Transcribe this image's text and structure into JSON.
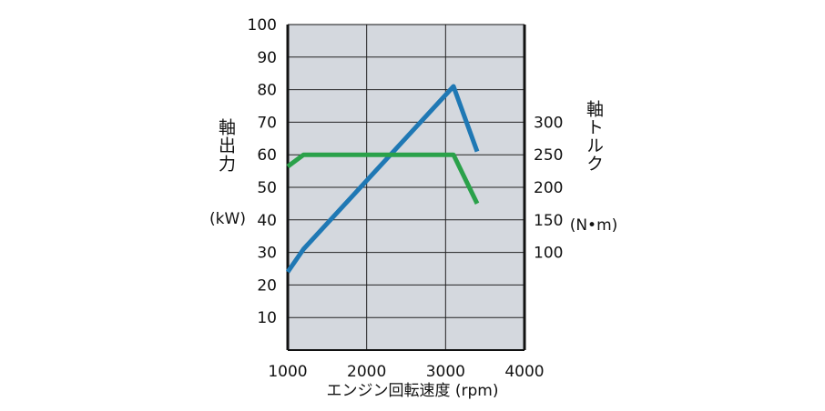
{
  "chart_data": {
    "type": "line",
    "x_axis": {
      "label": "エンジン回転速度 (rpm)",
      "min": 1000,
      "max": 4000,
      "tick_values": [
        1000,
        2000,
        3000,
        4000
      ],
      "tick_labels": [
        "1000",
        "2000",
        "3000",
        "4000"
      ]
    },
    "y_left": {
      "label_vertical": "軸出力",
      "unit": "(kW)",
      "min": 0,
      "max": 100,
      "tick_values": [
        10,
        20,
        30,
        40,
        50,
        60,
        70,
        80,
        90,
        100
      ],
      "tick_labels": [
        "10",
        "20",
        "30",
        "40",
        "50",
        "60",
        "70",
        "80",
        "90",
        "100"
      ]
    },
    "y_right": {
      "label_vertical": "軸トルク",
      "unit": "(N•m)",
      "tick_values": [
        100,
        150,
        200,
        250,
        300
      ],
      "tick_labels": [
        "100",
        "150",
        "200",
        "250",
        "300"
      ],
      "value_at_left_60": 250,
      "value_at_left_70": 300
    },
    "grid": true,
    "series": [
      {
        "axis": "left",
        "color": "#1f78b4",
        "points": [
          [
            1000,
            24
          ],
          [
            1200,
            31
          ],
          [
            3100,
            81
          ],
          [
            3400,
            61
          ]
        ]
      },
      {
        "axis": "right",
        "color": "#2aa14a",
        "points": [
          [
            1000,
            232
          ],
          [
            1200,
            250
          ],
          [
            3100,
            250
          ],
          [
            3400,
            175
          ]
        ]
      }
    ]
  }
}
